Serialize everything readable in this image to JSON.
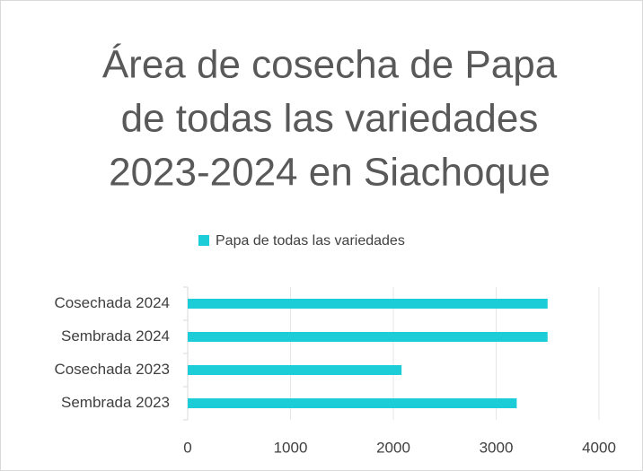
{
  "chart_data": {
    "type": "bar",
    "orientation": "horizontal",
    "title": [
      "Área de cosecha de Papa",
      "de todas las variedades",
      "2023-2024 en Siachoque"
    ],
    "categories": [
      "Cosechada 2024",
      "Sembrada 2024",
      "Cosechada 2023",
      "Sembrada 2023"
    ],
    "series": [
      {
        "name": "Papa de todas las variedades",
        "color": "#1ccdd8",
        "values": [
          3500,
          3500,
          2080,
          3200
        ]
      }
    ],
    "xlim": [
      0,
      4000
    ],
    "xticks": [
      0,
      1000,
      2000,
      3000,
      4000
    ],
    "grid": true,
    "legend": "top"
  }
}
